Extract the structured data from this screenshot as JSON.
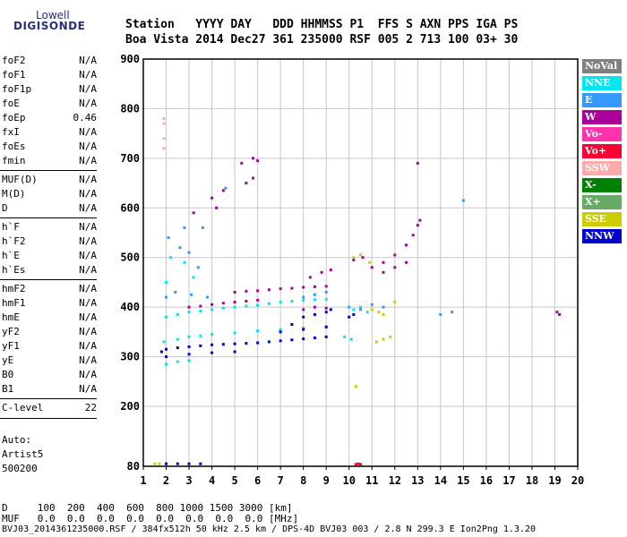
{
  "logo": {
    "top": "Lowell",
    "main": "DIGISONDE"
  },
  "header": {
    "row1": "Station   YYYY DAY   DDD HHMMSS P1  FFS S AXN PPS IGA PS",
    "row2": "Boa Vista 2014 Dec27 361 235000 RSF 005 2 713 100 03+ 30"
  },
  "params": {
    "group1": [
      {
        "label": "foF2",
        "value": "N/A"
      },
      {
        "label": "foF1",
        "value": "N/A"
      },
      {
        "label": "foF1p",
        "value": "N/A"
      },
      {
        "label": "foE",
        "value": "N/A"
      },
      {
        "label": "foEp",
        "value": "0.46"
      },
      {
        "label": "fxI",
        "value": "N/A"
      },
      {
        "label": "foEs",
        "value": "N/A"
      },
      {
        "label": "fmin",
        "value": "N/A"
      }
    ],
    "group2": [
      {
        "label": "MUF(D)",
        "value": "N/A"
      },
      {
        "label": "M(D)",
        "value": "N/A"
      },
      {
        "label": "D",
        "value": "N/A"
      }
    ],
    "group3": [
      {
        "label": "h`F",
        "value": "N/A"
      },
      {
        "label": "h`F2",
        "value": "N/A"
      },
      {
        "label": "h`E",
        "value": "N/A"
      },
      {
        "label": "h`Es",
        "value": "N/A"
      }
    ],
    "group4": [
      {
        "label": "hmF2",
        "value": "N/A"
      },
      {
        "label": "hmF1",
        "value": "N/A"
      },
      {
        "label": "hmE",
        "value": "N/A"
      },
      {
        "label": "yF2",
        "value": "N/A"
      },
      {
        "label": "yF1",
        "value": "N/A"
      },
      {
        "label": "yE",
        "value": "N/A"
      },
      {
        "label": "B0",
        "value": "N/A"
      },
      {
        "label": "B1",
        "value": "N/A"
      }
    ],
    "group5": [
      {
        "label": "C-level",
        "value": "22"
      }
    ]
  },
  "auto": {
    "line1": "Auto:",
    "line2": "Artist5",
    "line3": "500200"
  },
  "legend": [
    {
      "label": "NoVal",
      "bg": "#808080",
      "fg": "#ffffff"
    },
    {
      "label": "NNE",
      "bg": "#00e5ee",
      "fg": "#ffffff"
    },
    {
      "label": "E",
      "bg": "#3399ff",
      "fg": "#ffffff"
    },
    {
      "label": "W",
      "bg": "#aa0099",
      "fg": "#ffffff"
    },
    {
      "label": "Vo-",
      "bg": "#ff33aa",
      "fg": "#ffffff"
    },
    {
      "label": "Vo+",
      "bg": "#ff0033",
      "fg": "#ffffff"
    },
    {
      "label": "SSW",
      "bg": "#ffaaaa",
      "fg": "#ffffff"
    },
    {
      "label": "X-",
      "bg": "#008000",
      "fg": "#ffffff"
    },
    {
      "label": "X+",
      "bg": "#66aa66",
      "fg": "#ffffff"
    },
    {
      "label": "SSE",
      "bg": "#cccc00",
      "fg": "#ffffff"
    },
    {
      "label": "NNW",
      "bg": "#0000cc",
      "fg": "#ffffff"
    }
  ],
  "footer": {
    "line1": "D     100  200  400  600  800 1000 1500 3000 [km]",
    "line2": "MUF   0.0  0.0  0.0  0.0  0.0  0.0  0.0  0.0 [MHz]",
    "line3": "BVJ03_2014361235000.RSF / 384fx512h 50 kHz 2.5 km / DPS-4D BVJ03 003 / 2.8 N 299.3 E Ion2Png 1.3.20"
  },
  "chart_data": {
    "type": "scatter",
    "title": "",
    "xlabel": "",
    "ylabel": "",
    "xlim": [
      1,
      20
    ],
    "ylim": [
      80,
      900
    ],
    "x_ticks": [
      1,
      2,
      3,
      4,
      5,
      6,
      7,
      8,
      9,
      10,
      11,
      12,
      13,
      14,
      15,
      16,
      17,
      18,
      19,
      20
    ],
    "y_ticks": [
      80,
      200,
      300,
      400,
      500,
      600,
      700,
      800,
      900
    ],
    "grid": true,
    "series": [
      {
        "name": "NNE",
        "color": "#00e5ee",
        "points": [
          [
            2.0,
            380
          ],
          [
            2.5,
            385
          ],
          [
            3.0,
            390
          ],
          [
            3.5,
            392
          ],
          [
            4.0,
            395
          ],
          [
            4.5,
            398
          ],
          [
            5.0,
            400
          ],
          [
            5.5,
            402
          ],
          [
            6.0,
            404
          ],
          [
            6.5,
            407
          ],
          [
            7.0,
            410
          ],
          [
            7.5,
            412
          ],
          [
            8.0,
            414
          ],
          [
            8.5,
            415
          ],
          [
            9.0,
            416
          ],
          [
            1.9,
            330
          ],
          [
            2.5,
            335
          ],
          [
            3.0,
            340
          ],
          [
            3.5,
            342
          ],
          [
            4.0,
            345
          ],
          [
            5.0,
            348
          ],
          [
            6.0,
            352
          ],
          [
            7.0,
            355
          ],
          [
            8.0,
            358
          ],
          [
            9.0,
            360
          ],
          [
            2.2,
            500
          ],
          [
            2.8,
            490
          ],
          [
            3.2,
            460
          ],
          [
            2.0,
            450
          ],
          [
            10.2,
            395
          ],
          [
            10.5,
            400
          ],
          [
            10.8,
            390
          ],
          [
            9.8,
            340
          ],
          [
            10.1,
            335
          ],
          [
            2.0,
            285
          ],
          [
            2.5,
            290
          ],
          [
            3.0,
            292
          ]
        ]
      },
      {
        "name": "E",
        "color": "#3399ff",
        "points": [
          [
            2.1,
            540
          ],
          [
            2.6,
            520
          ],
          [
            3.0,
            510
          ],
          [
            3.4,
            480
          ],
          [
            2.8,
            560
          ],
          [
            3.6,
            560
          ],
          [
            4.2,
            600
          ],
          [
            4.6,
            640
          ],
          [
            2.0,
            420
          ],
          [
            2.4,
            430
          ],
          [
            3.1,
            425
          ],
          [
            3.8,
            420
          ],
          [
            8.0,
            420
          ],
          [
            8.5,
            425
          ],
          [
            9.0,
            430
          ],
          [
            10.0,
            400
          ],
          [
            10.5,
            395
          ],
          [
            11.0,
            405
          ],
          [
            11.5,
            400
          ],
          [
            15.0,
            615
          ],
          [
            14.5,
            390
          ],
          [
            14.0,
            385
          ]
        ]
      },
      {
        "name": "W",
        "color": "#aa0099",
        "points": [
          [
            3.0,
            400
          ],
          [
            3.5,
            402
          ],
          [
            4.0,
            405
          ],
          [
            4.5,
            408
          ],
          [
            5.0,
            410
          ],
          [
            5.5,
            412
          ],
          [
            6.0,
            414
          ],
          [
            5.0,
            430
          ],
          [
            5.5,
            432
          ],
          [
            6.0,
            433
          ],
          [
            6.5,
            435
          ],
          [
            7.0,
            437
          ],
          [
            7.5,
            438
          ],
          [
            8.0,
            440
          ],
          [
            8.5,
            441
          ],
          [
            9.0,
            442
          ],
          [
            5.3,
            690
          ],
          [
            5.8,
            700
          ],
          [
            6.0,
            695
          ],
          [
            5.5,
            650
          ],
          [
            5.8,
            660
          ],
          [
            4.0,
            620
          ],
          [
            4.5,
            635
          ],
          [
            4.2,
            600
          ],
          [
            3.2,
            590
          ],
          [
            11.0,
            480
          ],
          [
            11.5,
            490
          ],
          [
            12.0,
            505
          ],
          [
            12.5,
            525
          ],
          [
            12.8,
            545
          ],
          [
            13.0,
            565
          ],
          [
            13.1,
            575
          ],
          [
            10.2,
            495
          ],
          [
            10.6,
            500
          ],
          [
            11.5,
            470
          ],
          [
            12.0,
            480
          ],
          [
            12.5,
            490
          ],
          [
            13.0,
            690
          ],
          [
            19.1,
            390
          ],
          [
            19.2,
            385
          ],
          [
            8.0,
            395
          ],
          [
            8.5,
            400
          ],
          [
            9.0,
            398
          ],
          [
            8.3,
            460
          ],
          [
            8.8,
            470
          ],
          [
            9.2,
            475
          ]
        ]
      },
      {
        "name": "SSW",
        "color": "#ffaaaa",
        "points": [
          [
            1.9,
            770
          ],
          [
            1.9,
            740
          ],
          [
            1.9,
            720
          ],
          [
            1.9,
            780
          ]
        ]
      },
      {
        "name": "SSE",
        "color": "#cccc00",
        "points": [
          [
            10.2,
            500
          ],
          [
            10.5,
            505
          ],
          [
            10.9,
            490
          ],
          [
            11.0,
            395
          ],
          [
            11.3,
            390
          ],
          [
            11.5,
            385
          ],
          [
            11.2,
            330
          ],
          [
            11.5,
            335
          ],
          [
            11.8,
            340
          ],
          [
            10.3,
            240
          ],
          [
            12.0,
            410
          ],
          [
            1.7,
            85
          ],
          [
            1.5,
            85
          ]
        ]
      },
      {
        "name": "NNW",
        "color": "#0000cc",
        "points": [
          [
            1.8,
            310
          ],
          [
            2.0,
            315
          ],
          [
            2.5,
            318
          ],
          [
            3.0,
            320
          ],
          [
            3.5,
            322
          ],
          [
            4.0,
            324
          ],
          [
            4.5,
            325
          ],
          [
            5.0,
            326
          ],
          [
            5.5,
            327
          ],
          [
            6.0,
            328
          ],
          [
            6.5,
            330
          ],
          [
            7.0,
            332
          ],
          [
            7.5,
            334
          ],
          [
            8.0,
            336
          ],
          [
            8.5,
            338
          ],
          [
            9.0,
            340
          ],
          [
            2.0,
            300
          ],
          [
            3.0,
            305
          ],
          [
            4.0,
            308
          ],
          [
            5.0,
            310
          ],
          [
            7.0,
            350
          ],
          [
            8.0,
            355
          ],
          [
            9.0,
            360
          ],
          [
            7.5,
            365
          ],
          [
            8.0,
            380
          ],
          [
            8.5,
            385
          ],
          [
            9.0,
            390
          ],
          [
            9.2,
            395
          ],
          [
            10.0,
            380
          ],
          [
            10.2,
            385
          ],
          [
            2.0,
            85
          ],
          [
            2.5,
            85
          ],
          [
            3.0,
            85
          ],
          [
            3.5,
            85
          ]
        ]
      },
      {
        "name": "Vo+",
        "color": "#ff0033",
        "points": [
          [
            10.3,
            84
          ],
          [
            10.4,
            85
          ],
          [
            10.5,
            84
          ]
        ]
      }
    ]
  }
}
